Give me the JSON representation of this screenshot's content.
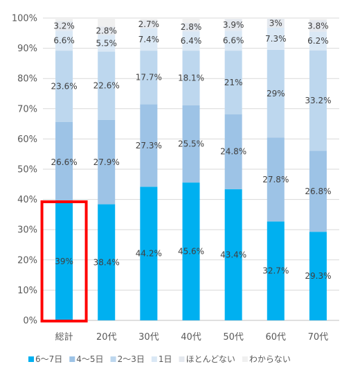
{
  "chart_data": {
    "type": "bar",
    "stacked": true,
    "categories": [
      "総計",
      "20代",
      "30代",
      "40代",
      "50代",
      "60代",
      "70代"
    ],
    "series": [
      {
        "name": "6〜7日",
        "color": "#00b0f0",
        "values": [
          39,
          38.4,
          44.2,
          45.6,
          43.4,
          32.7,
          29.3
        ],
        "labels": [
          "39%",
          "38.4%",
          "44.2%",
          "45.6%",
          "43.4%",
          "32.7%",
          "29.3%"
        ]
      },
      {
        "name": "4〜5日",
        "color": "#9dc3e6",
        "values": [
          26.6,
          27.9,
          27.3,
          25.5,
          24.8,
          27.8,
          26.8
        ],
        "labels": [
          "26.6%",
          "27.9%",
          "27.3%",
          "25.5%",
          "24.8%",
          "27.8%",
          "26.8%"
        ]
      },
      {
        "name": "2〜3日",
        "color": "#bdd7ee",
        "values": [
          23.6,
          22.6,
          17.7,
          18.1,
          21,
          29,
          33.2
        ],
        "labels": [
          "23.6%",
          "22.6%",
          "17.7%",
          "18.1%",
          "21%",
          "29%",
          "33.2%"
        ]
      },
      {
        "name": "1日",
        "color": "#dae8f5",
        "values": [
          6.6,
          5.5,
          7.4,
          6.4,
          6.6,
          7.3,
          6.2
        ],
        "labels": [
          "6.6%",
          "5.5%",
          "7.4%",
          "6.4%",
          "6.6%",
          "7.3%",
          "6.2%"
        ]
      },
      {
        "name": "ほとんどない",
        "color": "#e4e8ee",
        "values": [
          3.2,
          2.8,
          2.7,
          2.8,
          3.9,
          3,
          3.8
        ],
        "labels": [
          "3.2%",
          "2.8%",
          "2.7%",
          "2.8%",
          "3.9%",
          "3%",
          "3.8%"
        ]
      },
      {
        "name": "わからない",
        "color": "#f0f0f0",
        "values": [
          1,
          2.8,
          0.7,
          1.6,
          0.3,
          0.2,
          0.7
        ],
        "labels": null
      }
    ],
    "ylim": [
      0,
      100
    ],
    "yticks": [
      "0%",
      "10%",
      "20%",
      "30%",
      "40%",
      "50%",
      "60%",
      "70%",
      "80%",
      "90%",
      "100%"
    ],
    "grid": true,
    "legend": "bottom",
    "highlight": {
      "category": "総計",
      "series": "6〜7日",
      "color": "#ff0000"
    }
  }
}
